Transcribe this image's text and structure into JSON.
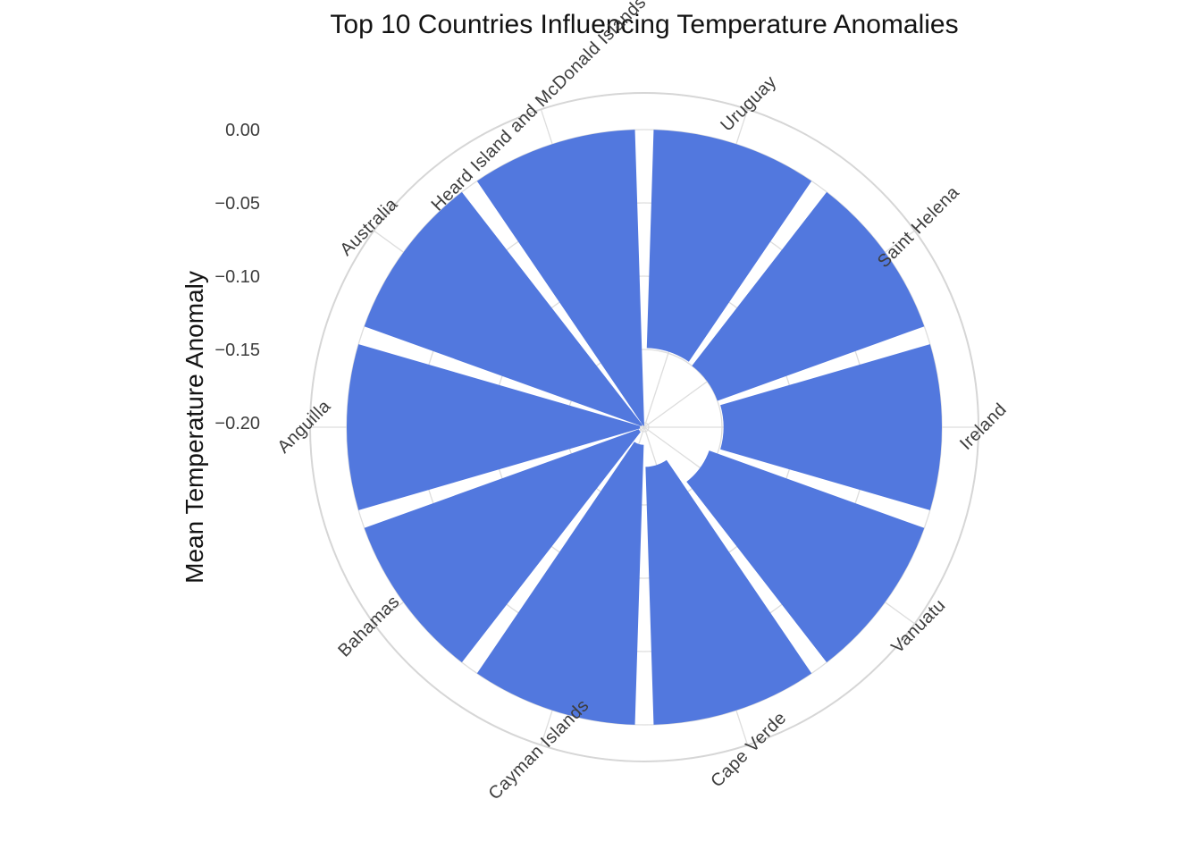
{
  "page": {
    "background": "#ffffff"
  },
  "chart_data": {
    "type": "bar",
    "subtype": "polar-bar",
    "title": "Top 10 Countries Influencing Temperature Anomalies",
    "ylabel": "Mean Temperature Anomaly",
    "xlabel": "",
    "categories": [
      "Uruguay",
      "Saint Helena",
      "Ireland",
      "Vanuatu",
      "Cape Verde",
      "Cayman Islands",
      "Bahamas",
      "Anguilla",
      "Australia",
      "Heard Island and McDonald Islands"
    ],
    "values": [
      -0.149,
      -0.15,
      -0.149,
      -0.156,
      -0.176,
      -0.191,
      -0.199,
      -0.2,
      -0.201,
      -0.202
    ],
    "radial_ticks": {
      "labels": [
        "0.00",
        "−0.05",
        "−0.10",
        "−0.15",
        "−0.20"
      ],
      "values": [
        0,
        -0.05,
        -0.1,
        -0.15,
        -0.2
      ]
    },
    "angular_layout": {
      "direction": "clockwise",
      "zero_at": "top",
      "first_sector_center_deg": 18,
      "sector_step_deg": 36,
      "bar_width_deg": 32.4
    },
    "radial_range": [
      -0.2031,
      0.025
    ],
    "grid": true,
    "legend": false,
    "colors": {
      "bar": "#5278DE",
      "grid": "#DDDDDD",
      "outer_ring": "#D6D6D6",
      "tick_text": "#3D3D3D",
      "title_text": "#131313"
    }
  }
}
